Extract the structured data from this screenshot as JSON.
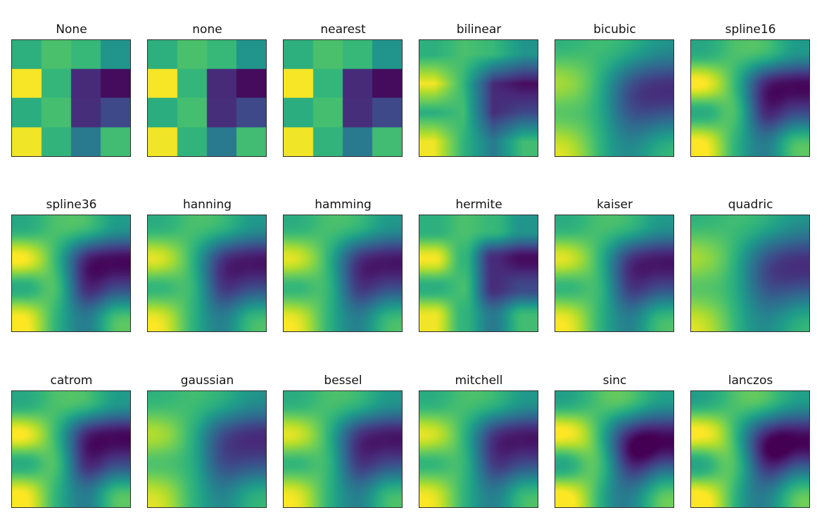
{
  "figure": {
    "background_color": "#ffffff"
  },
  "chart_data": {
    "type": "heatmap",
    "description": "Grid of 18 subplots showing the same 4x4 scalar array rendered with different image interpolation methods, viridis colormap, no axis ticks",
    "layout": {
      "rows": 3,
      "cols": 6,
      "xticks": "none",
      "yticks": "none",
      "grid": false,
      "legend": "none"
    },
    "colormap": "viridis",
    "colormap_anchors": [
      "#440154",
      "#482878",
      "#3e4a89",
      "#31688e",
      "#26828e",
      "#1f9e89",
      "#35b779",
      "#6ece58",
      "#b5de2b",
      "#fde725"
    ],
    "value_range": [
      0,
      1
    ],
    "grid_shape": [
      4,
      4
    ],
    "grid_values": [
      [
        0.63,
        0.71,
        0.67,
        0.52
      ],
      [
        0.99,
        0.66,
        0.12,
        0.03
      ],
      [
        0.62,
        0.7,
        0.13,
        0.22
      ],
      [
        0.98,
        0.65,
        0.41,
        0.69
      ]
    ],
    "subplots": [
      {
        "title": "None",
        "kernel": "nearest"
      },
      {
        "title": "none",
        "kernel": "nearest"
      },
      {
        "title": "nearest",
        "kernel": "nearest"
      },
      {
        "title": "bilinear",
        "kernel": "triangle"
      },
      {
        "title": "bicubic",
        "kernel": "bspline"
      },
      {
        "title": "spline16",
        "kernel": "catrom"
      },
      {
        "title": "spline36",
        "kernel": "catrom"
      },
      {
        "title": "hanning",
        "kernel": "mitchell"
      },
      {
        "title": "hamming",
        "kernel": "mitchell"
      },
      {
        "title": "hermite",
        "kernel": "hermite"
      },
      {
        "title": "kaiser",
        "kernel": "mitchell"
      },
      {
        "title": "quadric",
        "kernel": "bspline"
      },
      {
        "title": "catrom",
        "kernel": "catrom"
      },
      {
        "title": "gaussian",
        "kernel": "gaussian"
      },
      {
        "title": "bessel",
        "kernel": "mitchell"
      },
      {
        "title": "mitchell",
        "kernel": "mitchell"
      },
      {
        "title": "sinc",
        "kernel": "lanczos3"
      },
      {
        "title": "lanczos",
        "kernel": "lanczos3"
      }
    ]
  }
}
